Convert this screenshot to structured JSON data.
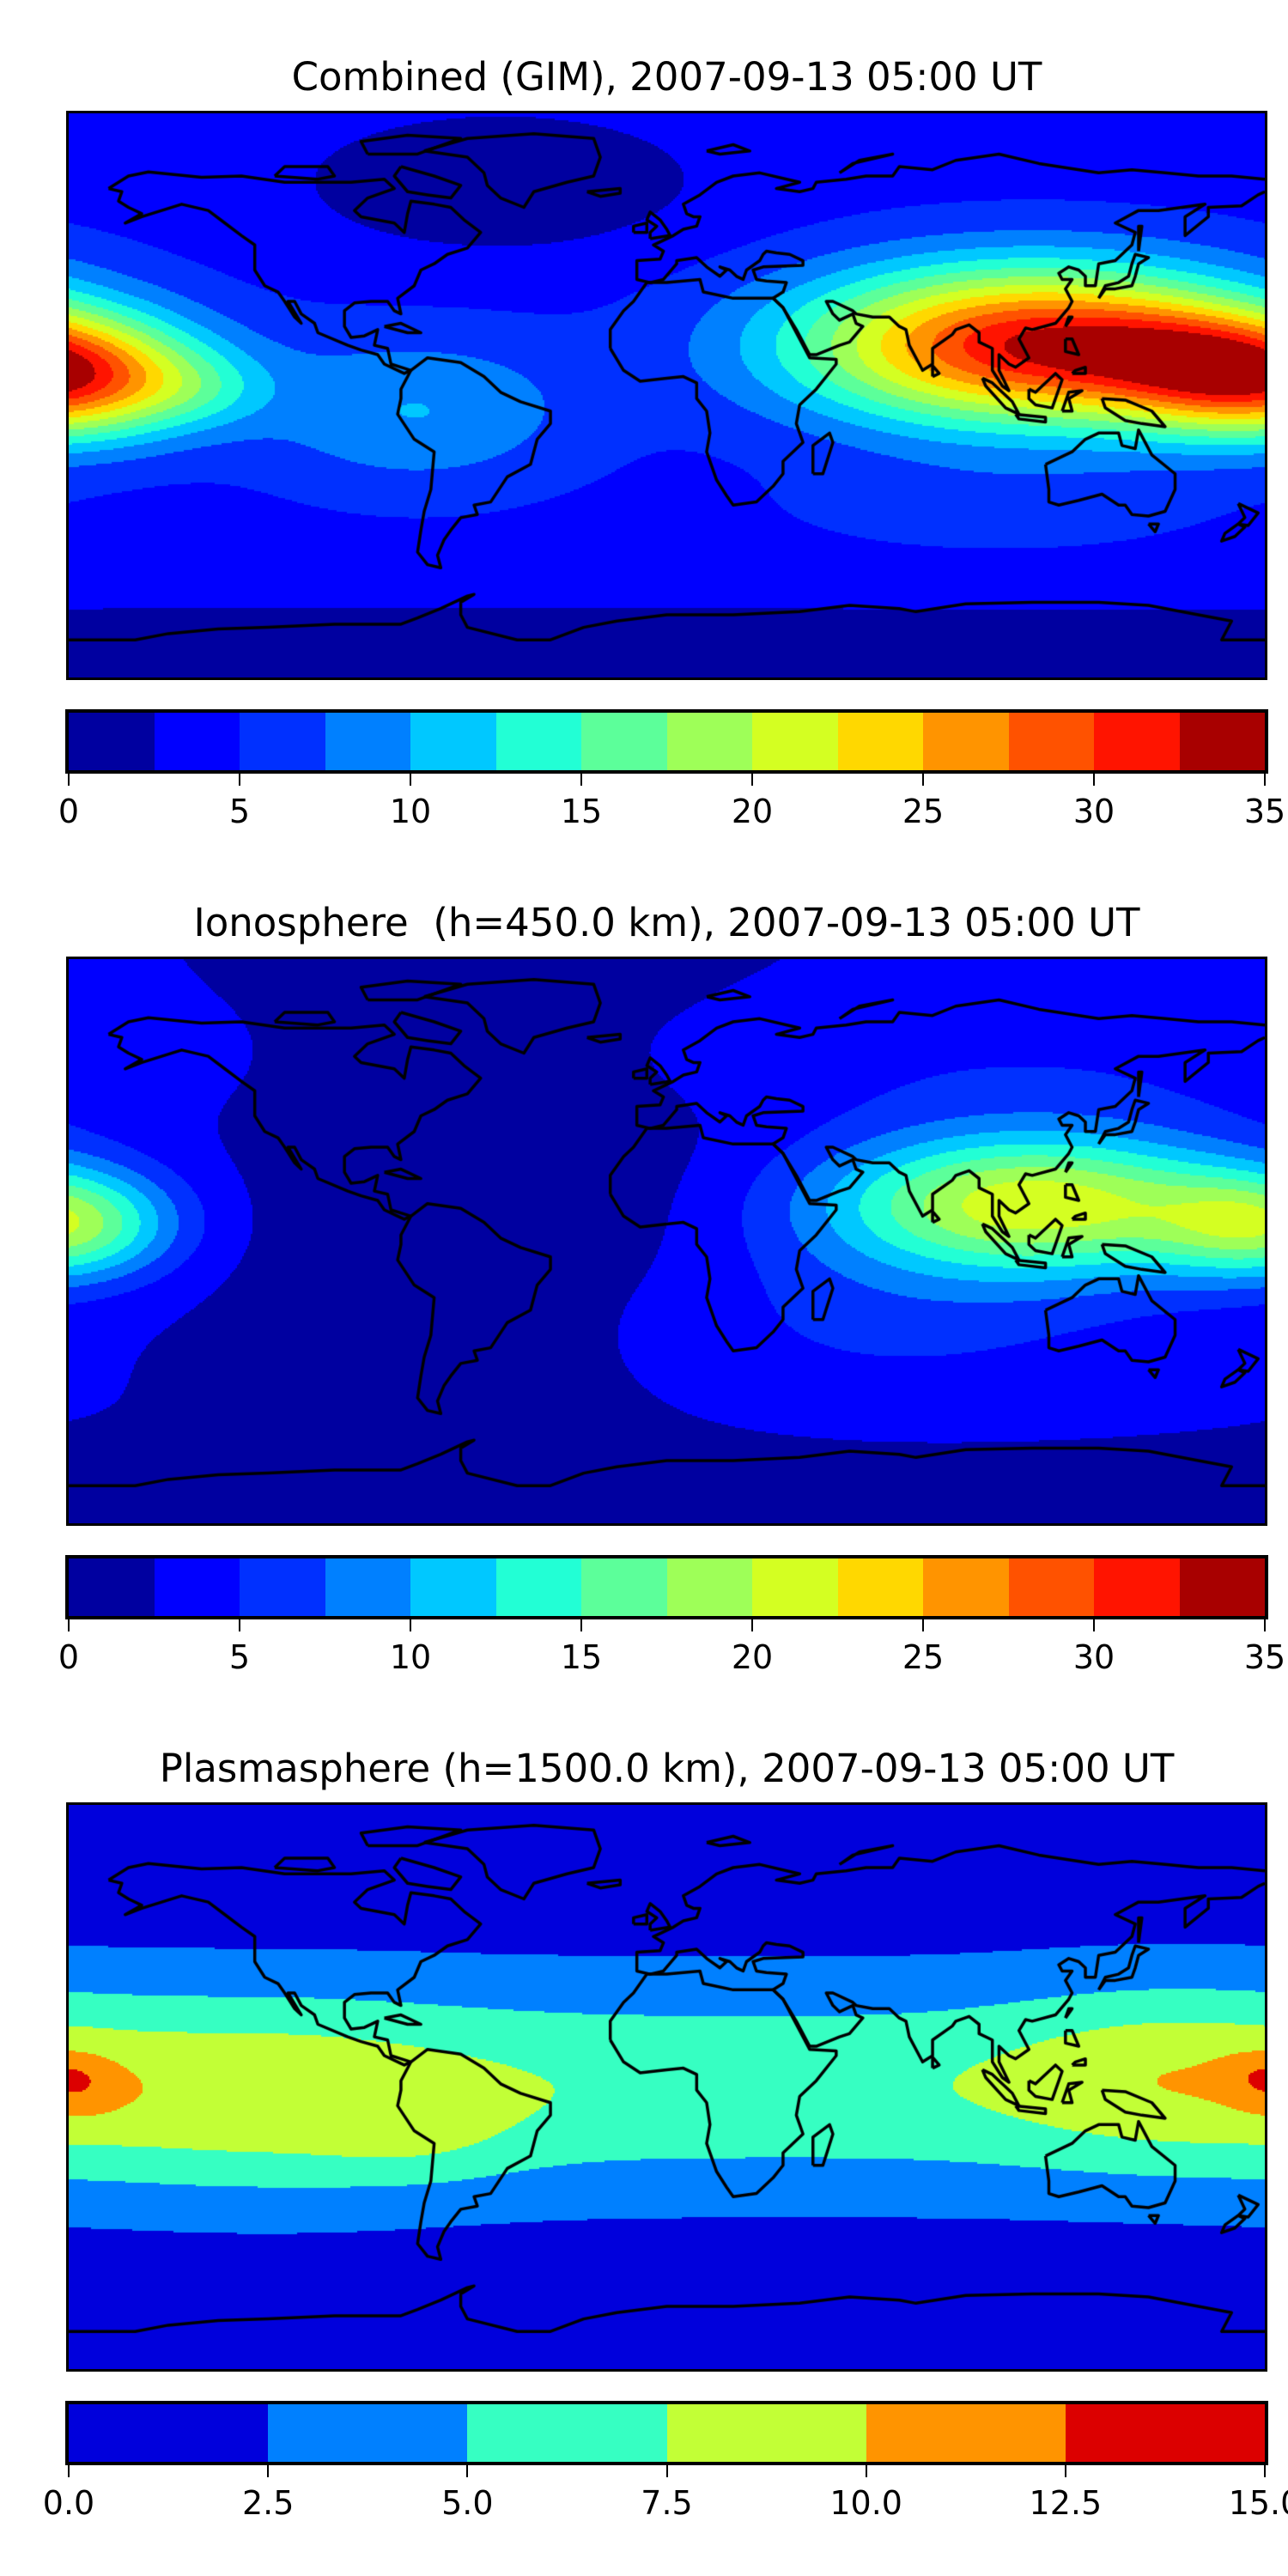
{
  "chart_data": [
    {
      "type": "heatmap",
      "title": "Combined (GIM), 2007-09-13 05:00 UT",
      "xlim": [
        -180,
        180
      ],
      "ylim": [
        -90,
        90
      ],
      "levels": [
        0,
        2.5,
        5,
        7.5,
        10,
        12.5,
        15,
        17.5,
        20,
        22.5,
        25,
        27.5,
        30,
        32.5,
        35
      ],
      "colors": [
        "#0000a0",
        "#0000ff",
        "#0030ff",
        "#0080ff",
        "#00c8ff",
        "#22ffd5",
        "#5cff9a",
        "#9eff58",
        "#d4ff22",
        "#ffd800",
        "#ff9400",
        "#ff5200",
        "#ff1400",
        "#a80000"
      ],
      "tick_labels": [
        "0",
        "5",
        "10",
        "15",
        "20",
        "25",
        "30",
        "35"
      ],
      "field": {
        "base": 4,
        "terms": [
          {
            "lon": 110,
            "lat": 16,
            "slon": 50,
            "slat": 18,
            "amp": 28
          },
          {
            "lon": 150,
            "lat": 15,
            "slon": 25,
            "slat": 10,
            "amp": 4
          },
          {
            "lon": -180,
            "lat": 5,
            "slon": 28,
            "slat": 13,
            "amp": 21
          },
          {
            "lon": -75,
            "lat": -5,
            "slon": 35,
            "slat": 18,
            "amp": 6
          },
          {
            "lon": -140,
            "lat": 2,
            "slon": 15,
            "slat": 8,
            "amp": 3
          },
          {
            "lon": 100,
            "lat": -35,
            "slon": 50,
            "slat": 12,
            "amp": 2
          },
          {
            "lon": -50,
            "lat": 68,
            "slon": 40,
            "slat": 15,
            "amp": -4
          },
          {
            "lon": 0,
            "lat": -82,
            "slon": 1000,
            "slat": 12,
            "amp": -3
          }
        ]
      }
    },
    {
      "type": "heatmap",
      "title": "Ionosphere  (h=450.0 km), 2007-09-13 05:00 UT",
      "xlim": [
        -180,
        180
      ],
      "ylim": [
        -90,
        90
      ],
      "levels": [
        0,
        2.5,
        5,
        7.5,
        10,
        12.5,
        15,
        17.5,
        20,
        22.5,
        25,
        27.5,
        30,
        32.5,
        35
      ],
      "colors": [
        "#0000a0",
        "#0000ff",
        "#0030ff",
        "#0080ff",
        "#00c8ff",
        "#22ffd5",
        "#5cff9a",
        "#9eff58",
        "#d4ff22",
        "#ffd800",
        "#ff9400",
        "#ff5200",
        "#ff1400",
        "#a80000"
      ],
      "tick_labels": [
        "0",
        "5",
        "10",
        "15",
        "20",
        "25",
        "30",
        "35"
      ],
      "field": {
        "base": 2.6,
        "terms": [
          {
            "lon": 110,
            "lat": 12,
            "slon": 45,
            "slat": 16,
            "amp": 19
          },
          {
            "lon": -180,
            "lat": 5,
            "slon": 22,
            "slat": 12,
            "amp": 13
          },
          {
            "lon": 60,
            "lat": -25,
            "slon": 60,
            "slat": 20,
            "amp": 3
          },
          {
            "lon": 100,
            "lat": 55,
            "slon": 80,
            "slat": 15,
            "amp": 2
          },
          {
            "lon": -50,
            "lat": 5,
            "slon": 60,
            "slat": 50,
            "amp": -2.2
          },
          {
            "lon": 0,
            "lat": -80,
            "slon": 1000,
            "slat": 10,
            "amp": -1.5
          }
        ]
      }
    },
    {
      "type": "heatmap",
      "title": "Plasmasphere (h=1500.0 km), 2007-09-13 05:00 UT",
      "xlim": [
        -180,
        180
      ],
      "ylim": [
        -90,
        90
      ],
      "levels": [
        0,
        2.5,
        5,
        7.5,
        10,
        12.5,
        15
      ],
      "colors": [
        "#0000dc",
        "#0080ff",
        "#36ffc2",
        "#c2ff36",
        "#ff9400",
        "#dc0000"
      ],
      "tick_labels": [
        "0.0",
        "2.5",
        "5.0",
        "7.5",
        "10.0",
        "12.5",
        "15.0"
      ],
      "field": {
        "base": 1,
        "terms": [
          {
            "lon": 0,
            "lat": 0,
            "slon": 1000,
            "slat": 25,
            "amp": 6
          },
          {
            "lon": -120,
            "lat": -5,
            "slon": 45,
            "slat": 22,
            "amp": 2.8
          },
          {
            "lon": 150,
            "lat": 5,
            "slon": 35,
            "slat": 20,
            "amp": 2.8
          },
          {
            "lon": -75,
            "lat": -15,
            "slon": 20,
            "slat": 10,
            "amp": 1.5
          },
          {
            "lon": -176,
            "lat": 0,
            "slon": 9,
            "slat": 7,
            "amp": 2
          },
          {
            "lon": 178,
            "lat": 4,
            "slon": 8,
            "slat": 5,
            "amp": 1.6
          }
        ]
      }
    }
  ]
}
